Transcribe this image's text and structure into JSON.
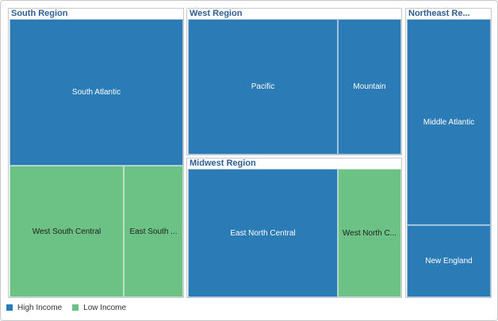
{
  "colors": {
    "high_income": "#2a7bb6",
    "low_income": "#6cc184",
    "group_title": "#2c5f9a",
    "label_on_high": "#ffffff",
    "label_on_low": "#222222"
  },
  "chart_data": {
    "type": "treemap",
    "groups": [
      {
        "name": "South Region",
        "cells": [
          {
            "label": "South Atlantic",
            "category": "High Income"
          },
          {
            "label": "West South Central",
            "category": "Low Income"
          },
          {
            "label": "East South ...",
            "category": "Low Income"
          }
        ]
      },
      {
        "name": "West Region",
        "cells": [
          {
            "label": "Pacific",
            "category": "High Income"
          },
          {
            "label": "Mountain",
            "category": "High Income"
          }
        ]
      },
      {
        "name": "Midwest Region",
        "cells": [
          {
            "label": "East North Central",
            "category": "High Income"
          },
          {
            "label": "West North C...",
            "category": "Low Income"
          }
        ]
      },
      {
        "name": "Northeast Re...",
        "cells": [
          {
            "label": "Middle Atlantic",
            "category": "High Income"
          },
          {
            "label": "New England",
            "category": "High Income"
          }
        ]
      }
    ],
    "legend": [
      {
        "label": "High Income",
        "color": "#2a7bb6"
      },
      {
        "label": "Low Income",
        "color": "#6cc184"
      }
    ]
  }
}
